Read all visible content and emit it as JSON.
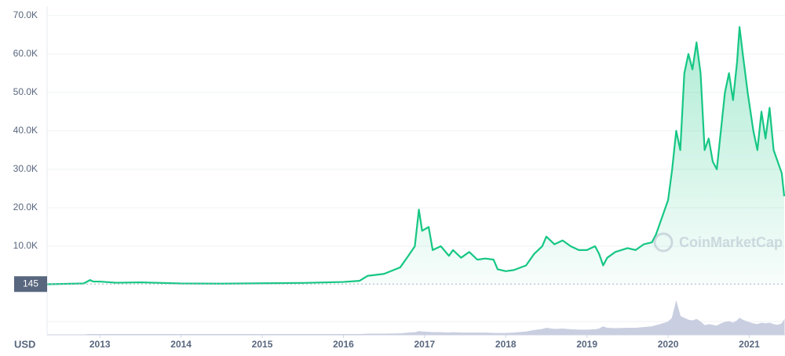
{
  "chart_data": {
    "type": "area",
    "x_label": "USD",
    "watermark": "CoinMarketCap",
    "marker": 145,
    "color": "#16c784",
    "volume_color": "#c9cfe0",
    "grid": true,
    "xlim": [
      2012.35,
      2021.44
    ],
    "xticks": [
      2013,
      2014,
      2015,
      2016,
      2017,
      2018,
      2019,
      2020,
      2021
    ],
    "ylim": [
      0,
      72000
    ],
    "yticks": [
      {
        "value": 10000,
        "label": "10.0K"
      },
      {
        "value": 20000,
        "label": "20.0K"
      },
      {
        "value": 30000,
        "label": "30.0K"
      },
      {
        "value": 40000,
        "label": "40.0K"
      },
      {
        "value": 50000,
        "label": "50.0K"
      },
      {
        "value": 60000,
        "label": "60.0K"
      },
      {
        "value": 70000,
        "label": "70.0K"
      }
    ],
    "volume_ylim": [
      0,
      100
    ],
    "x": [
      2012.35,
      2012.8,
      2012.88,
      2012.92,
      2013.0,
      2013.2,
      2013.5,
      2014.0,
      2014.5,
      2015.0,
      2015.5,
      2016.0,
      2016.2,
      2016.3,
      2016.5,
      2016.7,
      2016.8,
      2016.88,
      2016.93,
      2016.97,
      2017.05,
      2017.1,
      2017.2,
      2017.3,
      2017.35,
      2017.45,
      2017.55,
      2017.65,
      2017.75,
      2017.85,
      2017.9,
      2018.0,
      2018.1,
      2018.25,
      2018.35,
      2018.45,
      2018.5,
      2018.6,
      2018.7,
      2018.8,
      2018.9,
      2019.0,
      2019.1,
      2019.15,
      2019.2,
      2019.25,
      2019.35,
      2019.5,
      2019.6,
      2019.7,
      2019.8,
      2019.85,
      2019.9,
      2020.0,
      2020.05,
      2020.1,
      2020.15,
      2020.2,
      2020.25,
      2020.3,
      2020.35,
      2020.4,
      2020.45,
      2020.5,
      2020.55,
      2020.6,
      2020.65,
      2020.7,
      2020.75,
      2020.8,
      2020.85,
      2020.88,
      2020.92,
      2020.98,
      2021.05,
      2021.1,
      2021.15,
      2021.2,
      2021.25,
      2021.3,
      2021.35,
      2021.4,
      2021.43
    ],
    "values": [
      100,
      300,
      1200,
      800,
      800,
      500,
      600,
      300,
      250,
      350,
      450,
      700,
      1000,
      2300,
      2800,
      4500,
      7500,
      10000,
      19500,
      14000,
      15000,
      9000,
      10000,
      7500,
      9000,
      7000,
      8500,
      6500,
      6800,
      6500,
      4000,
      3500,
      3800,
      5000,
      8000,
      10000,
      12500,
      10500,
      11500,
      10000,
      9000,
      9000,
      10000,
      8000,
      5000,
      7000,
      8500,
      9500,
      9000,
      10500,
      11000,
      13000,
      16000,
      22000,
      30000,
      40000,
      35000,
      55000,
      60000,
      56000,
      63000,
      55000,
      35000,
      38000,
      32000,
      30000,
      40000,
      50000,
      55000,
      48000,
      58000,
      67000,
      60000,
      50000,
      40000,
      35000,
      45000,
      38000,
      46000,
      35000,
      32000,
      29000,
      23000
    ],
    "volume": [
      0,
      0,
      1,
      1,
      1,
      1,
      1,
      1,
      1,
      1,
      1,
      1,
      1,
      2,
      2,
      3,
      5,
      6,
      9,
      8,
      7,
      6,
      6,
      5,
      6,
      5,
      5,
      5,
      5,
      4,
      4,
      4,
      5,
      8,
      12,
      15,
      18,
      15,
      16,
      14,
      13,
      13,
      14,
      16,
      22,
      18,
      17,
      18,
      18,
      20,
      22,
      25,
      28,
      35,
      45,
      90,
      50,
      45,
      40,
      38,
      42,
      35,
      25,
      28,
      26,
      24,
      30,
      34,
      36,
      32,
      38,
      45,
      40,
      35,
      30,
      28,
      32,
      30,
      32,
      28,
      26,
      30,
      40
    ]
  }
}
